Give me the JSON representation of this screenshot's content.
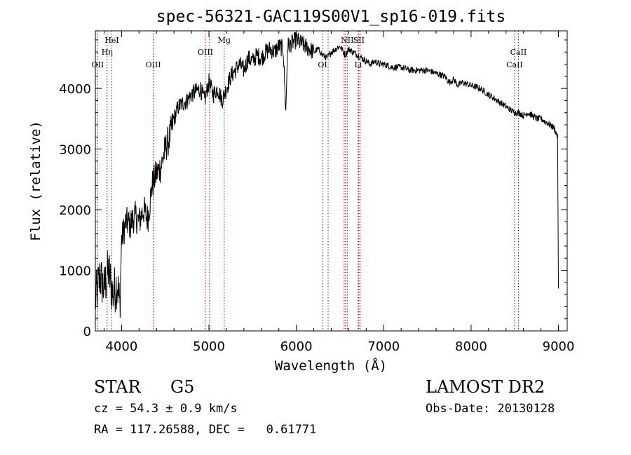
{
  "chart_data": {
    "type": "line",
    "title": "spec-56321-GAC119S00V1_sp16-019.fits",
    "xlabel": "Wavelength (Å)",
    "ylabel": "Flux (relative)",
    "xlim": [
      3700,
      9100
    ],
    "ylim": [
      0,
      4950
    ],
    "xticks": [
      4000,
      5000,
      6000,
      7000,
      8000,
      9000
    ],
    "yticks": [
      0,
      1000,
      2000,
      3000,
      4000
    ],
    "grid": false,
    "series": [
      {
        "x": [
          3700,
          3750,
          3800,
          3850,
          3900,
          3950,
          3980,
          4000,
          4050,
          4100,
          4150,
          4200,
          4250,
          4300,
          4350,
          4400,
          4450,
          4500,
          4550,
          4600,
          4650,
          4700,
          4750,
          4800,
          4850,
          4900,
          4950,
          5000,
          5050,
          5100,
          5150,
          5200,
          5250,
          5300,
          5350,
          5400,
          5450,
          5500,
          5550,
          5600,
          5650,
          5700,
          5750,
          5800,
          5850,
          5880,
          5900,
          5950,
          6000,
          6050,
          6100,
          6150,
          6200,
          6250,
          6300,
          6350,
          6400,
          6450,
          6500,
          6560,
          6600,
          6650,
          6700,
          6750,
          6800,
          6850,
          6900,
          6950,
          7000,
          7100,
          7200,
          7300,
          7400,
          7500,
          7600,
          7700,
          7750,
          7800,
          7850,
          7900,
          8000,
          8100,
          8200,
          8300,
          8400,
          8450,
          8500,
          8550,
          8600,
          8650,
          8700,
          8750,
          8800,
          8850,
          8900,
          8950,
          8990,
          9000
        ],
        "y": [
          500,
          900,
          700,
          1000,
          600,
          800,
          400,
          1500,
          1800,
          1750,
          1900,
          1800,
          2000,
          1850,
          2400,
          2600,
          2700,
          3000,
          3200,
          3500,
          3700,
          3750,
          3800,
          3900,
          3950,
          4000,
          3800,
          4100,
          3900,
          4000,
          3800,
          4000,
          4200,
          4300,
          4400,
          4300,
          4500,
          4450,
          4550,
          4500,
          4600,
          4650,
          4600,
          4700,
          4650,
          3600,
          4700,
          4750,
          4800,
          4750,
          4700,
          4650,
          4600,
          4650,
          4550,
          4500,
          4600,
          4650,
          4700,
          4550,
          4650,
          4600,
          4550,
          4500,
          4450,
          4400,
          4450,
          4400,
          4400,
          4350,
          4350,
          4300,
          4300,
          4300,
          4250,
          4200,
          4100,
          4150,
          4050,
          4100,
          4050,
          4000,
          3900,
          3800,
          3700,
          3650,
          3600,
          3600,
          3550,
          3600,
          3550,
          3500,
          3500,
          3450,
          3400,
          3350,
          3200,
          700
        ]
      }
    ],
    "lines": [
      {
        "wavelength": 3727,
        "label": "OII",
        "tier": 3
      },
      {
        "wavelength": 3835,
        "label": "Hη",
        "tier": 2
      },
      {
        "wavelength": 3889,
        "label": "HeI",
        "tier": 1
      },
      {
        "wavelength": 4363,
        "label": "OIII",
        "tier": 3
      },
      {
        "wavelength": 4959,
        "label": "OIII",
        "tier": 2
      },
      {
        "wavelength": 5007,
        "label": "",
        "tier": 0
      },
      {
        "wavelength": 5175,
        "label": "Mg",
        "tier": 1
      },
      {
        "wavelength": 6300,
        "label": "OI",
        "tier": 3
      },
      {
        "wavelength": 6364,
        "label": "",
        "tier": 0
      },
      {
        "wavelength": 6548,
        "label": "",
        "tier": 0
      },
      {
        "wavelength": 6563,
        "label": "",
        "tier": 0
      },
      {
        "wavelength": 6583,
        "label": "NII",
        "tier": 1
      },
      {
        "wavelength": 6708,
        "label": "Li",
        "tier": 3
      },
      {
        "wavelength": 6716,
        "label": "SII",
        "tier": 1
      },
      {
        "wavelength": 6731,
        "label": "",
        "tier": 0
      },
      {
        "wavelength": 8498,
        "label": "CaII",
        "tier": 3
      },
      {
        "wavelength": 8542,
        "label": "CaII",
        "tier": 2
      }
    ]
  },
  "info": {
    "class": "STAR",
    "subclass": "G5",
    "survey": "LAMOST DR2",
    "cz": "cz = 54.3 ± 0.9 km/s",
    "obs_date": "Obs-Date: 20130128",
    "coords": "RA = 117.26588, DEC =   0.61771"
  },
  "colors": {
    "line": "#000000",
    "marker": "#aa0000",
    "axis": "#000000"
  }
}
